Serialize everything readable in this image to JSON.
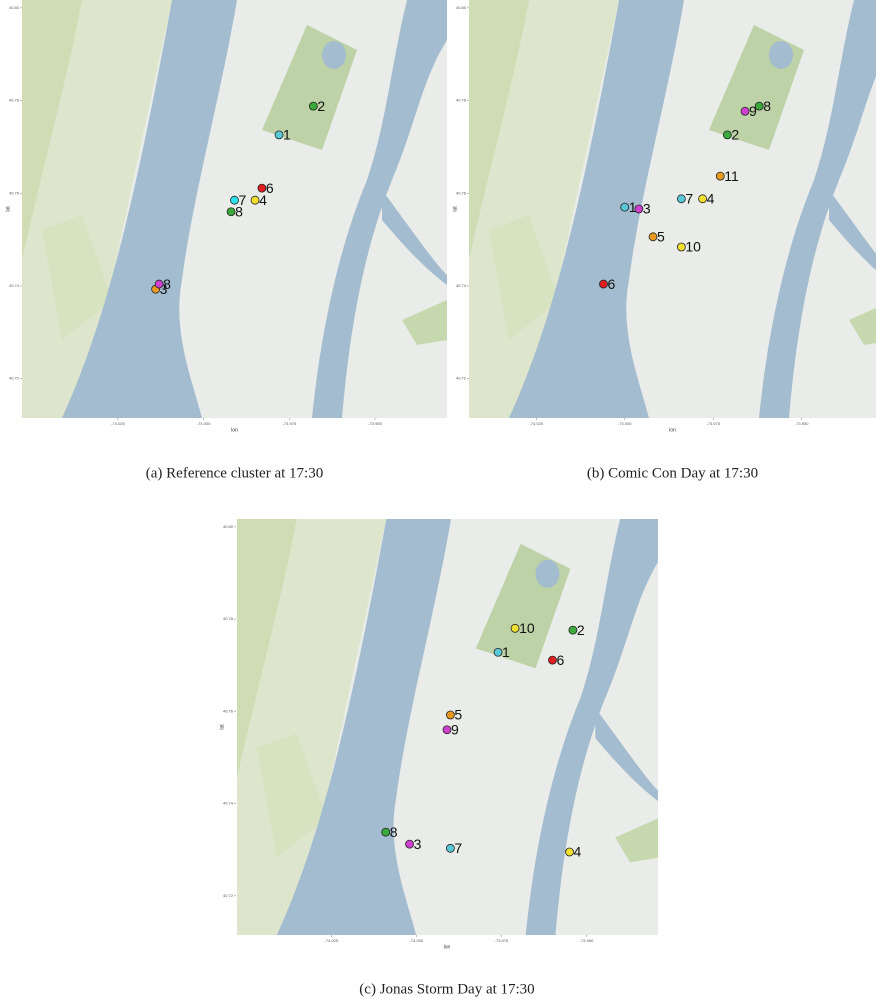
{
  "chart_data": [
    {
      "type": "scatter",
      "caption": "(a) Reference cluster at 17:30",
      "xlabel": "lon",
      "ylabel": "lat",
      "x": [
        -73.978,
        -73.968,
        -74.014,
        -73.985,
        -73.983,
        -73.991,
        -73.992,
        -74.013
      ],
      "y": [
        40.7726,
        40.7788,
        40.7393,
        40.7585,
        40.7611,
        40.7585,
        40.756,
        40.7404
      ],
      "labels": [
        "1",
        "2",
        "3",
        "4",
        "6",
        "7",
        "8",
        "8"
      ],
      "colors": [
        "#5bc8d8",
        "#3aaa3a",
        "#e89a20",
        "#f2e030",
        "#e02020",
        "#30e0f0",
        "#3aaa3a",
        "#d040d0"
      ],
      "xlim": [
        -74.053,
        -73.929
      ],
      "ylim": [
        40.7115,
        40.8017
      ],
      "xticks": [
        -74.025,
        {
          "value": -74,
          "label": "-74.000"
        },
        -73.975,
        {
          "value": -73.95,
          "label": "-73.950"
        }
      ],
      "yticks": [
        {
          "value": 40.8,
          "label": "40.80"
        },
        40.78,
        40.76,
        40.74,
        {
          "value": 40.72,
          "label": "40.72"
        }
      ]
    },
    {
      "type": "scatter",
      "caption": "(b) Comic Con Day at 17:30",
      "xlabel": "lon",
      "ylabel": "lat",
      "x": [
        -74.0,
        -73.971,
        -73.996,
        -73.978,
        -73.992,
        -74.006,
        -73.984,
        -73.962,
        -73.966,
        -73.984,
        -73.973
      ],
      "y": [
        40.757,
        40.7726,
        40.7566,
        40.7588,
        40.7506,
        40.7404,
        40.7588,
        40.7788,
        40.7777,
        40.7484,
        40.7637
      ],
      "labels": [
        "1",
        "2",
        "3",
        "4",
        "5",
        "6",
        "7",
        "8",
        "9",
        "10",
        "11"
      ],
      "colors": [
        "#5bc8d8",
        "#3aaa3a",
        "#d040d0",
        "#f2e030",
        "#e89a20",
        "#e02020",
        "#5bc8d8",
        "#3aaa3a",
        "#d040d0",
        "#f2e030",
        "#e89a20"
      ],
      "xlim": [
        -74.044,
        -73.929
      ],
      "ylim": [
        40.7115,
        40.8017
      ],
      "xticks": [
        -74.025,
        {
          "value": -74,
          "label": "-74.000"
        },
        -73.975,
        {
          "value": -73.95,
          "label": "-73.950"
        }
      ],
      "yticks": [
        {
          "value": 40.8,
          "label": "40.80"
        },
        40.78,
        40.76,
        40.74,
        40.72
      ]
    },
    {
      "type": "scatter",
      "caption": "(c) Jonas Storm Day at 17:30",
      "xlabel": "lon",
      "ylabel": "lat",
      "x": [
        -73.976,
        -73.954,
        -74.002,
        -73.955,
        -73.99,
        -73.96,
        -73.99,
        -74.009,
        -73.991,
        -73.971
      ],
      "y": [
        40.7728,
        40.7776,
        40.7312,
        40.7295,
        40.7592,
        40.7711,
        40.7303,
        40.7338,
        40.756,
        40.778
      ],
      "labels": [
        "1",
        "2",
        "3",
        "4",
        "5",
        "6",
        "7",
        "8",
        "9",
        "10"
      ],
      "colors": [
        "#5bc8d8",
        "#3aaa3a",
        "#d040d0",
        "#f2e030",
        "#e89a20",
        "#e02020",
        "#5bc8d8",
        "#3aaa3a",
        "#d040d0",
        "#f2e030"
      ],
      "xlim": [
        -74.053,
        -73.929
      ],
      "ylim": [
        40.7115,
        40.8017
      ],
      "xticks": [
        -74.025,
        {
          "value": -74,
          "label": "-74.000"
        },
        -73.975,
        {
          "value": -73.95,
          "label": "-73.950"
        }
      ],
      "yticks": [
        {
          "value": 40.8,
          "label": "40.80"
        },
        40.78,
        40.76,
        40.74,
        40.72
      ]
    }
  ]
}
